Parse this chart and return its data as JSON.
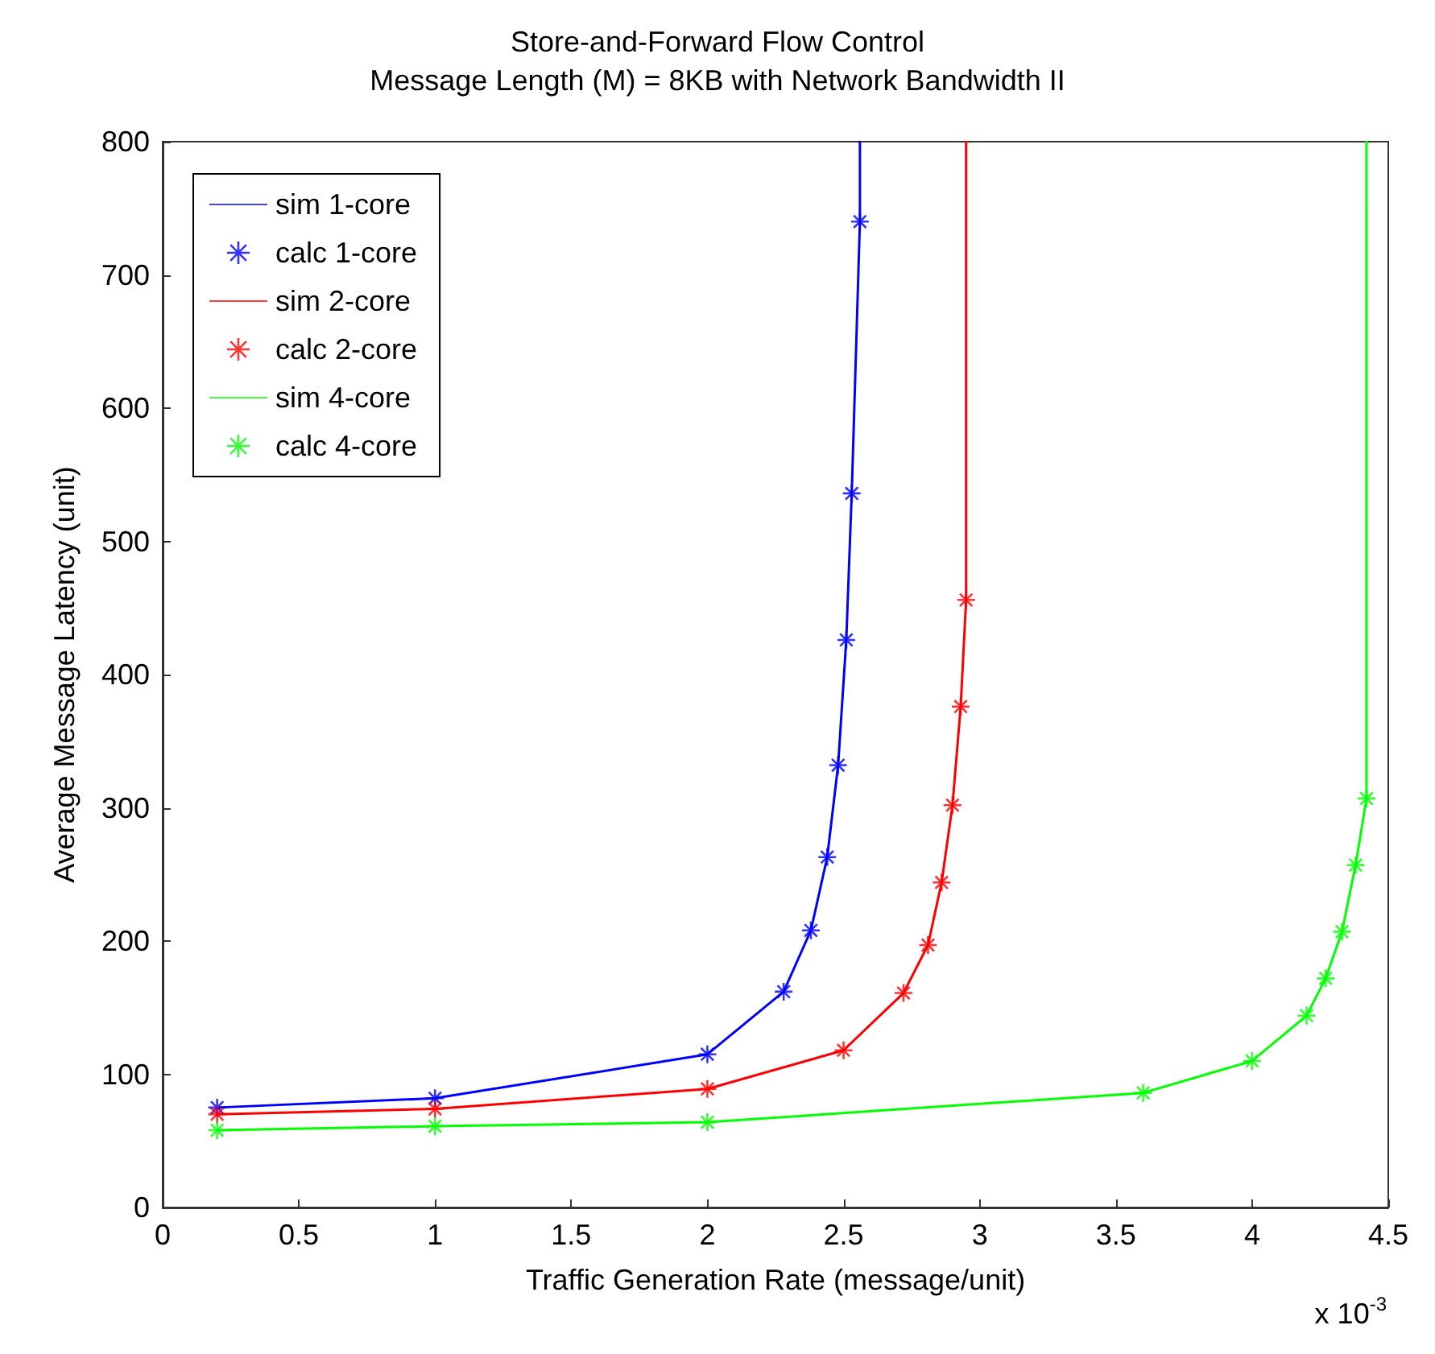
{
  "chart_data": {
    "type": "line",
    "title": "Store-and-Forward Flow Control",
    "subtitle": "Message Length (M) = 8KB with Network Bandwidth II",
    "xlabel": "Traffic Generation Rate (message/unit)",
    "ylabel": "Average Message Latency (unit)",
    "annotations": [
      "x 10$^{-3}$"
    ],
    "xlim": [
      0,
      4.5
    ],
    "xticks": [
      0,
      0.5,
      1,
      1.5,
      2,
      2.5,
      3,
      3.5,
      4,
      4.5
    ],
    "ylim": [
      0,
      800
    ],
    "yticks": [
      0,
      100,
      200,
      300,
      400,
      500,
      600,
      700,
      800
    ],
    "grid": false,
    "legend": "top left",
    "series": [
      {
        "name": "sim 1-core",
        "marker": "none",
        "line_style": "solid",
        "color": "#0000ff",
        "x": [
          0.2,
          1,
          2,
          2.28,
          2.38,
          2.44,
          2.48,
          2.51,
          2.53,
          2.56,
          2.56
        ],
        "values": [
          75,
          82,
          115,
          162,
          208,
          263,
          332,
          426,
          536,
          740,
          800
        ]
      },
      {
        "name": "calc 1-core",
        "type": "scatter",
        "marker": "cross",
        "color": "#0000ff",
        "x": [
          0.2,
          1,
          2,
          2.28,
          2.38,
          2.44,
          2.48,
          2.51,
          2.53,
          2.56
        ],
        "values": [
          75,
          82,
          115,
          162,
          208,
          263,
          332,
          426,
          536,
          740
        ]
      },
      {
        "name": "sim 2-core",
        "marker": "none",
        "line_style": "solid",
        "color": "#ff0000",
        "x": [
          0.2,
          1,
          2,
          2.5,
          2.72,
          2.81,
          2.86,
          2.9,
          2.93,
          2.95,
          2.95
        ],
        "values": [
          70,
          74,
          89,
          118,
          161,
          197,
          244,
          302,
          376,
          456,
          800
        ]
      },
      {
        "name": "calc 2-core",
        "type": "scatter",
        "marker": "cross",
        "color": "#ff0000",
        "x": [
          0.2,
          1,
          2,
          2.5,
          2.72,
          2.81,
          2.86,
          2.9,
          2.93,
          2.95
        ],
        "values": [
          70,
          74,
          89,
          118,
          161,
          197,
          244,
          302,
          376,
          456
        ]
      },
      {
        "name": "sim 4-core",
        "marker": "none",
        "line_style": "solid",
        "color": "#00ff00",
        "x": [
          0.2,
          1,
          2,
          3.6,
          4,
          4.2,
          4.27,
          4.33,
          4.38,
          4.42,
          4.42
        ],
        "values": [
          58,
          61,
          64,
          86,
          110,
          144,
          172,
          207,
          257,
          307,
          800
        ]
      },
      {
        "name": "calc 4-core",
        "type": "scatter",
        "marker": "cross",
        "color": "#00ff00",
        "x": [
          0.2,
          1,
          2,
          3.6,
          4,
          4.2,
          4.27,
          4.33,
          4.38,
          4.42
        ],
        "values": [
          58,
          61,
          64,
          86,
          110,
          144,
          172,
          207,
          257,
          307
        ]
      }
    ]
  }
}
